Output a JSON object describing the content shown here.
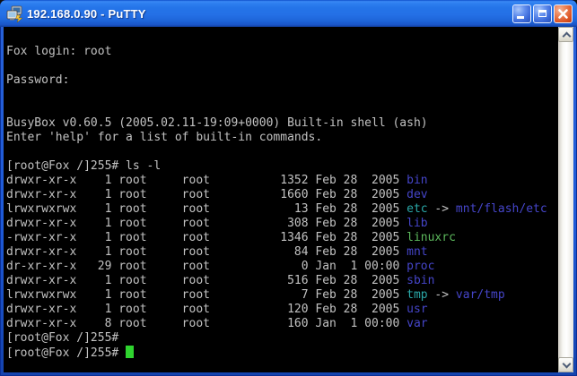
{
  "window": {
    "title": "192.168.0.90 - PuTTY",
    "icons": {
      "app": "putty-icon",
      "minimize": "minimize-icon",
      "maximize": "maximize-icon",
      "close": "close-icon"
    }
  },
  "terminal": {
    "colors": {
      "bg": "#000000",
      "fg": "#c2c2c2",
      "dir": "#4545c9",
      "sym": "#2aa7a7",
      "exe": "#5cb85c",
      "cursor": "#2fd42f"
    },
    "lines": [
      [],
      [
        [
          "Fox login: root",
          "fg"
        ]
      ],
      [],
      [
        [
          "Password:",
          "fg"
        ]
      ],
      [],
      [],
      [
        [
          "BusyBox v0.60.5 (2005.02.11-19:09+0000) Built-in shell (ash)",
          "fg"
        ]
      ],
      [
        [
          "Enter 'help' for a list of built-in commands.",
          "fg"
        ]
      ],
      [],
      [
        [
          "[root@Fox /]255# ls -l",
          "fg"
        ]
      ],
      [
        [
          "drwxr-xr-x    1 root     root          1352 Feb 28  2005 ",
          "fg"
        ],
        [
          "bin",
          "dir"
        ]
      ],
      [
        [
          "drwxr-xr-x    1 root     root          1660 Feb 28  2005 ",
          "fg"
        ],
        [
          "dev",
          "dir"
        ]
      ],
      [
        [
          "lrwxrwxrwx    1 root     root            13 Feb 28  2005 ",
          "fg"
        ],
        [
          "etc",
          "sym"
        ],
        [
          " -> ",
          "fg"
        ],
        [
          "mnt/flash/etc",
          "dir"
        ]
      ],
      [
        [
          "drwxr-xr-x    1 root     root           308 Feb 28  2005 ",
          "fg"
        ],
        [
          "lib",
          "dir"
        ]
      ],
      [
        [
          "-rwxr-xr-x    1 root     root          1346 Feb 28  2005 ",
          "fg"
        ],
        [
          "linuxrc",
          "exe"
        ]
      ],
      [
        [
          "drwxr-xr-x    1 root     root            84 Feb 28  2005 ",
          "fg"
        ],
        [
          "mnt",
          "dir"
        ]
      ],
      [
        [
          "dr-xr-xr-x   29 root     root             0 Jan  1 00:00 ",
          "fg"
        ],
        [
          "proc",
          "dir"
        ]
      ],
      [
        [
          "drwxr-xr-x    1 root     root           516 Feb 28  2005 ",
          "fg"
        ],
        [
          "sbin",
          "dir"
        ]
      ],
      [
        [
          "lrwxrwxrwx    1 root     root             7 Feb 28  2005 ",
          "fg"
        ],
        [
          "tmp",
          "sym"
        ],
        [
          " -> ",
          "fg"
        ],
        [
          "var/tmp",
          "dir"
        ]
      ],
      [
        [
          "drwxr-xr-x    1 root     root           120 Feb 28  2005 ",
          "fg"
        ],
        [
          "usr",
          "dir"
        ]
      ],
      [
        [
          "drwxr-xr-x    8 root     root           160 Jan  1 00:00 ",
          "fg"
        ],
        [
          "var",
          "dir"
        ]
      ],
      [
        [
          "[root@Fox /]255#",
          "fg"
        ]
      ],
      [
        [
          "[root@Fox /]255# ",
          "fg"
        ],
        [
          " ",
          "cursor"
        ]
      ]
    ]
  },
  "scrollbar": {
    "up": "chevron-up-icon",
    "down": "chevron-down-icon"
  }
}
